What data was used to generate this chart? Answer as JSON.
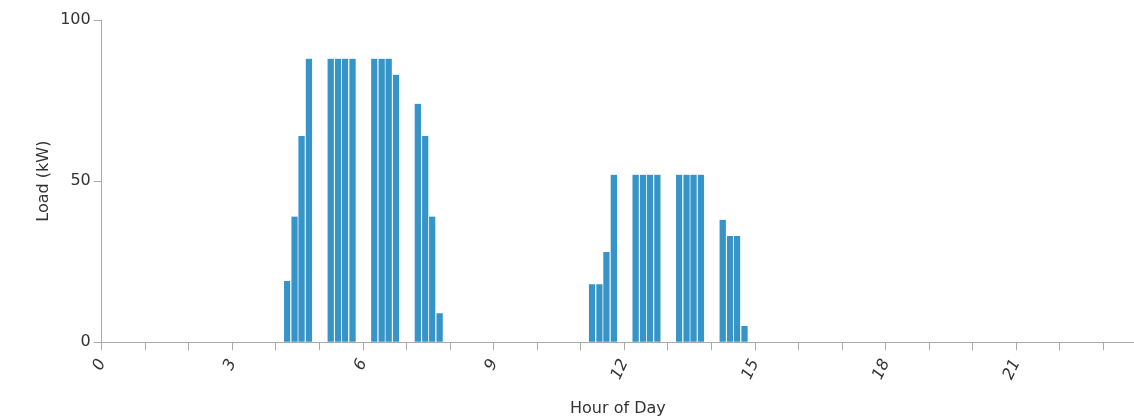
{
  "chart_data": {
    "type": "bar",
    "xlabel": "Hour of Day",
    "ylabel": "Load (kW)",
    "x": [
      4.25,
      4.42,
      4.58,
      4.75,
      5.25,
      5.42,
      5.58,
      5.75,
      6.25,
      6.42,
      6.58,
      6.75,
      7.25,
      7.42,
      7.58,
      7.75,
      11.25,
      11.42,
      11.58,
      11.75,
      12.25,
      12.42,
      12.58,
      12.75,
      13.25,
      13.42,
      13.58,
      13.75,
      14.25,
      14.42,
      14.58,
      14.75
    ],
    "values": [
      19,
      39,
      64,
      88,
      88,
      88,
      88,
      88,
      88,
      88,
      88,
      83,
      74,
      64,
      39,
      9,
      18,
      18,
      28,
      52,
      52,
      52,
      52,
      52,
      52,
      52,
      52,
      52,
      38,
      33,
      33,
      5
    ],
    "color": "#3594c8",
    "xlim": [
      0,
      23.7
    ],
    "xticks": [
      0,
      {
        "value": 1,
        "label": null
      },
      {
        "value": 2,
        "label": null
      },
      3,
      {
        "value": 4,
        "label": null
      },
      {
        "value": 5,
        "label": null
      },
      6,
      {
        "value": 7,
        "label": null
      },
      {
        "value": 8,
        "label": null
      },
      9,
      {
        "value": 10,
        "label": null
      },
      {
        "value": 11,
        "label": null
      },
      12,
      {
        "value": 13,
        "label": null
      },
      {
        "value": 14,
        "label": null
      },
      15,
      {
        "value": 16,
        "label": null
      },
      {
        "value": 17,
        "label": null
      },
      18,
      {
        "value": 19,
        "label": null
      },
      {
        "value": 20,
        "label": null
      },
      21,
      {
        "value": 22,
        "label": null
      },
      {
        "value": 23,
        "label": null
      }
    ],
    "ylim": [
      0,
      100
    ],
    "yticks": [
      0,
      50,
      100
    ],
    "grid": false,
    "legend": false
  }
}
